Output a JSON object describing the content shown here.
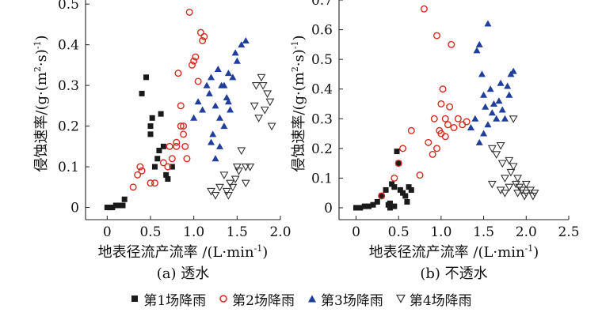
{
  "legend": [
    {
      "name": "第1场降雨",
      "marker": "square",
      "color": "#1a1a1a"
    },
    {
      "name": "第2场降雨",
      "marker": "circle",
      "color": "#d62b1f"
    },
    {
      "name": "第3场降雨",
      "marker": "triangle-up",
      "color": "#1f3f9a"
    },
    {
      "name": "第4场降雨",
      "marker": "triangle-down",
      "color": "#333333"
    }
  ],
  "chart_data": [
    {
      "type": "scatter",
      "caption": "(a) 透水",
      "xlabel": "地表径流产流率 /(L·min",
      "xlabel_sup": "-1",
      "xlabel_end": ")",
      "ylabel": "侵蚀速率/(g·(m",
      "ylabel_sup1": "2",
      "ylabel_mid": "·s)",
      "ylabel_sup2": "-1",
      "ylabel_end": ")",
      "xlim": [
        -0.25,
        2.0
      ],
      "ylim": [
        -0.03,
        0.51
      ],
      "xticks": [
        "0",
        "0.5",
        "1.0",
        "1.5",
        "2.0"
      ],
      "xtick_values": [
        0,
        0.5,
        1.0,
        1.5,
        2.0
      ],
      "yticks": [
        "0",
        "0.1",
        "0.2",
        "0.3",
        "0.4",
        "0.5"
      ],
      "ytick_values": [
        0,
        0.1,
        0.2,
        0.3,
        0.4,
        0.5
      ],
      "series": [
        {
          "name": "第1场降雨",
          "marker": "square",
          "color": "#1a1a1a",
          "x": [
            0.0,
            0.03,
            0.06,
            0.1,
            0.14,
            0.18,
            0.2,
            0.4,
            0.45,
            0.5,
            0.52,
            0.55,
            0.58,
            0.62,
            0.65,
            0.68,
            0.7,
            0.75,
            0.6,
            0.5
          ],
          "y": [
            0.0,
            0.0,
            0.0,
            0.005,
            0.005,
            0.005,
            0.02,
            0.28,
            0.32,
            0.2,
            0.22,
            0.1,
            0.12,
            0.23,
            0.15,
            0.08,
            0.07,
            0.1,
            0.14,
            0.18
          ]
        },
        {
          "name": "第2场降雨",
          "marker": "circle",
          "color": "#d62b1f",
          "x": [
            0.3,
            0.35,
            0.38,
            0.4,
            0.5,
            0.55,
            0.65,
            0.7,
            0.72,
            0.75,
            0.8,
            0.82,
            0.85,
            0.88,
            0.9,
            0.92,
            0.95,
            0.98,
            1.0,
            1.02,
            1.05,
            1.08,
            1.1,
            1.12,
            0.85,
            0.88,
            0.8
          ],
          "y": [
            0.05,
            0.08,
            0.1,
            0.09,
            0.06,
            0.06,
            0.11,
            0.1,
            0.15,
            0.12,
            0.16,
            0.33,
            0.25,
            0.2,
            0.15,
            0.12,
            0.48,
            0.35,
            0.36,
            0.37,
            0.31,
            0.43,
            0.41,
            0.42,
            0.2,
            0.18,
            0.15
          ]
        },
        {
          "name": "第3场降雨",
          "marker": "triangle-up",
          "color": "#1f3f9a",
          "x": [
            1.0,
            1.05,
            1.1,
            1.15,
            1.18,
            1.2,
            1.22,
            1.25,
            1.28,
            1.3,
            1.32,
            1.35,
            1.38,
            1.4,
            1.42,
            1.45,
            1.48,
            1.5,
            1.55,
            1.6,
            1.25,
            1.3,
            1.35,
            1.2,
            1.4
          ],
          "y": [
            0.22,
            0.26,
            0.24,
            0.3,
            0.28,
            0.32,
            0.18,
            0.25,
            0.34,
            0.15,
            0.3,
            0.2,
            0.27,
            0.33,
            0.24,
            0.32,
            0.38,
            0.36,
            0.4,
            0.41,
            0.12,
            0.22,
            0.3,
            0.16,
            0.26
          ]
        },
        {
          "name": "第4场降雨",
          "marker": "triangle-down",
          "color": "#333333",
          "x": [
            1.2,
            1.25,
            1.3,
            1.35,
            1.38,
            1.4,
            1.42,
            1.45,
            1.48,
            1.5,
            1.52,
            1.55,
            1.6,
            1.65,
            1.7,
            1.75,
            1.78,
            1.8,
            1.82,
            1.85,
            1.88,
            1.9,
            1.6,
            1.72
          ],
          "y": [
            0.04,
            0.03,
            0.05,
            0.08,
            0.04,
            0.03,
            0.06,
            0.05,
            0.07,
            0.1,
            0.09,
            0.14,
            0.1,
            0.1,
            0.25,
            0.22,
            0.32,
            0.3,
            0.24,
            0.28,
            0.26,
            0.2,
            0.06,
            0.3
          ]
        }
      ]
    },
    {
      "type": "scatter",
      "caption": "(b) 不透水",
      "xlabel": "地表径流产流率 /(L·min",
      "xlabel_sup": "-1",
      "xlabel_end": ")",
      "ylabel": "侵蚀速率/(g·(m",
      "ylabel_sup1": "2",
      "ylabel_mid": "·s)",
      "ylabel_sup2": "-1",
      "ylabel_end": ")",
      "xlim": [
        -0.2,
        2.5
      ],
      "ylim": [
        -0.04,
        0.7
      ],
      "xticks": [
        "0",
        "0.5",
        "1.0",
        "1.5",
        "2.0",
        "2.5"
      ],
      "xtick_values": [
        0,
        0.5,
        1.0,
        1.5,
        2.0,
        2.5
      ],
      "yticks": [
        "0",
        "0.1",
        "0.2",
        "0.3",
        "0.4",
        "0.5",
        "0.6",
        "0.7"
      ],
      "ytick_values": [
        0,
        0.1,
        0.2,
        0.3,
        0.4,
        0.5,
        0.6,
        0.7
      ],
      "series": [
        {
          "name": "第1场降雨",
          "marker": "square",
          "color": "#1a1a1a",
          "x": [
            0.0,
            0.05,
            0.1,
            0.15,
            0.2,
            0.25,
            0.3,
            0.35,
            0.38,
            0.4,
            0.42,
            0.45,
            0.48,
            0.5,
            0.52,
            0.55,
            0.58,
            0.6,
            0.62,
            0.65,
            0.4,
            0.45
          ],
          "y": [
            0.0,
            0.0,
            0.005,
            0.005,
            0.01,
            0.02,
            0.04,
            0.06,
            0.01,
            0.015,
            0.08,
            0.07,
            0.19,
            0.15,
            0.06,
            0.05,
            0.04,
            0.02,
            0.07,
            0.06,
            0.0,
            0.005
          ]
        },
        {
          "name": "第2场降雨",
          "marker": "circle",
          "color": "#d62b1f",
          "x": [
            0.3,
            0.45,
            0.5,
            0.55,
            0.65,
            0.75,
            0.8,
            0.85,
            0.9,
            0.92,
            0.95,
            0.98,
            1.0,
            1.02,
            1.05,
            1.08,
            1.1,
            1.12,
            1.15,
            1.2,
            1.25,
            1.3,
            0.95,
            1.0,
            1.05
          ],
          "y": [
            0.04,
            0.1,
            0.15,
            0.2,
            0.26,
            0.11,
            0.67,
            0.22,
            0.18,
            0.3,
            0.58,
            0.26,
            0.35,
            0.4,
            0.3,
            0.28,
            0.34,
            0.55,
            0.27,
            0.3,
            0.28,
            0.29,
            0.2,
            0.25,
            0.24
          ]
        },
        {
          "name": "第3场降雨",
          "marker": "triangle-up",
          "color": "#1f3f9a",
          "x": [
            1.35,
            1.4,
            1.42,
            1.45,
            1.48,
            1.5,
            1.52,
            1.55,
            1.58,
            1.6,
            1.62,
            1.65,
            1.68,
            1.7,
            1.72,
            1.75,
            1.78,
            1.8,
            1.82,
            1.85,
            1.5,
            1.55,
            1.45
          ],
          "y": [
            0.27,
            0.3,
            0.53,
            0.55,
            0.45,
            0.38,
            0.34,
            0.62,
            0.4,
            0.32,
            0.35,
            0.3,
            0.36,
            0.42,
            0.33,
            0.3,
            0.41,
            0.38,
            0.45,
            0.46,
            0.25,
            0.28,
            0.22
          ]
        },
        {
          "name": "第4场降雨",
          "marker": "triangle-down",
          "color": "#333333",
          "x": [
            1.6,
            1.65,
            1.7,
            1.72,
            1.75,
            1.8,
            1.82,
            1.85,
            1.88,
            1.9,
            1.92,
            1.95,
            1.98,
            2.0,
            2.05,
            2.1,
            1.6,
            1.7,
            1.8,
            1.9,
            2.0,
            2.08,
            1.75,
            1.85
          ],
          "y": [
            0.2,
            0.18,
            0.21,
            0.15,
            0.1,
            0.16,
            0.12,
            0.14,
            0.08,
            0.05,
            0.07,
            0.06,
            0.04,
            0.05,
            0.06,
            0.05,
            0.08,
            0.06,
            0.07,
            0.1,
            0.08,
            0.04,
            0.05,
            0.3
          ]
        }
      ]
    }
  ]
}
